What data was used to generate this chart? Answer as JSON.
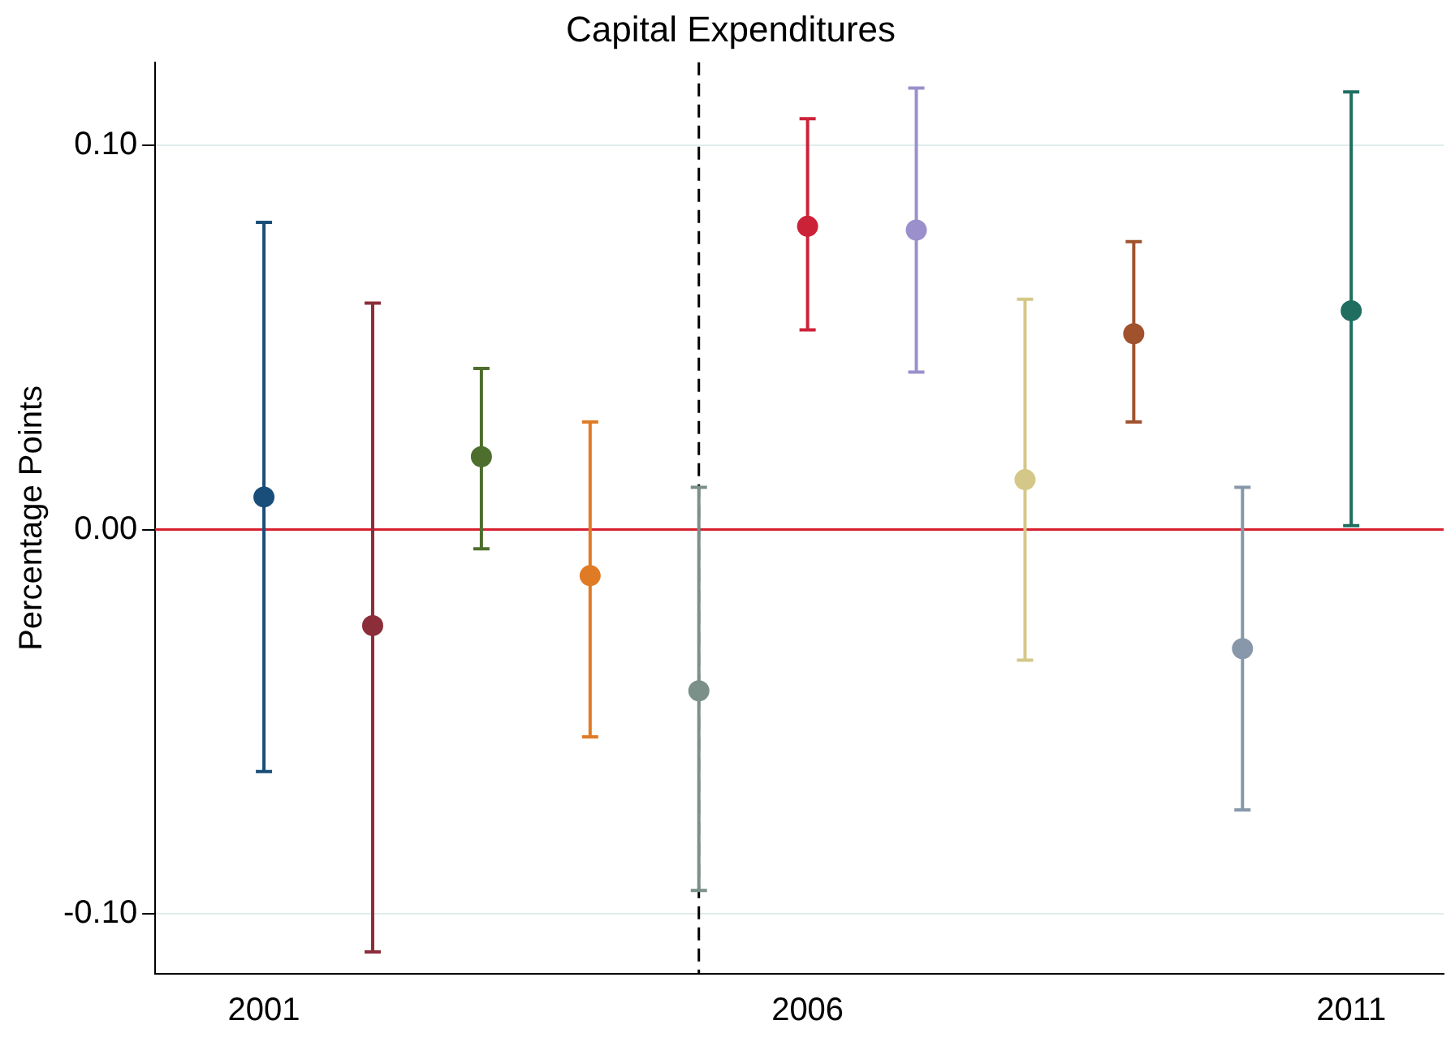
{
  "chart_data": {
    "type": "scatter",
    "title": "Capital Expenditures",
    "ylabel": "Percentage Points",
    "x": [
      2001,
      2002,
      2003,
      2004,
      2005,
      2006,
      2007,
      2008,
      2009,
      2010,
      2011
    ],
    "values": [
      0.0085,
      -0.025,
      0.019,
      -0.012,
      -0.042,
      0.079,
      0.078,
      0.013,
      0.051,
      -0.031,
      0.057
    ],
    "errors": [
      [
        -0.063,
        0.08
      ],
      [
        -0.11,
        0.059
      ],
      [
        -0.005,
        0.042
      ],
      [
        -0.054,
        0.028
      ],
      [
        -0.094,
        0.011
      ],
      [
        0.052,
        0.107
      ],
      [
        0.041,
        0.115
      ],
      [
        -0.034,
        0.06
      ],
      [
        0.028,
        0.075
      ],
      [
        -0.073,
        0.011
      ],
      [
        0.001,
        0.114
      ]
    ],
    "colors": [
      "#1a4e7a",
      "#8b2e3a",
      "#4e6e2e",
      "#e07b25",
      "#7a9088",
      "#cc2238",
      "#9b8fcc",
      "#d4c888",
      "#a0522d",
      "#8898aa",
      "#1f6e60"
    ],
    "xlim": [
      2000,
      2011.85
    ],
    "xticks": [
      2001,
      2006,
      2011
    ],
    "ylim": [
      -0.1157,
      0.1217
    ],
    "yticks": [
      {
        "value": -0.1,
        "label": "-0.10"
      },
      {
        "value": 0,
        "label": "0.00"
      },
      {
        "value": 0.1,
        "label": "0.10"
      }
    ],
    "grid": "y",
    "marker": "circle",
    "legend": false,
    "ref_lines": [
      {
        "axis": "y",
        "value": 0,
        "color": "#d62030",
        "line_style": "solid"
      },
      {
        "axis": "x",
        "value": 2005,
        "color": "#000000",
        "line_style": "dashed"
      }
    ]
  }
}
